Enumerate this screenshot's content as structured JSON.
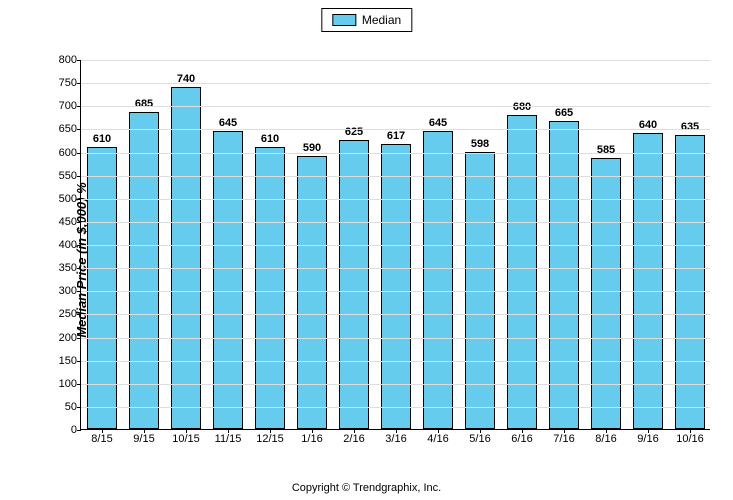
{
  "chart": {
    "type": "bar",
    "legend_label": "Median",
    "y_axis_title": "Median Price (in $,000) %",
    "y_min": 0,
    "y_max": 800,
    "y_tick_step": 50,
    "categories": [
      "8/15",
      "9/15",
      "10/15",
      "11/15",
      "12/15",
      "1/16",
      "2/16",
      "3/16",
      "4/16",
      "5/16",
      "6/16",
      "7/16",
      "8/16",
      "9/16",
      "10/16"
    ],
    "values": [
      610,
      685,
      740,
      645,
      610,
      590,
      625,
      617,
      645,
      598,
      680,
      665,
      585,
      640,
      635
    ],
    "bar_color": "#66ccee",
    "bar_border_color": "#000000",
    "background_color": "#ffffff",
    "grid_color": "#dddddd",
    "bar_width_ratio": 0.72,
    "label_fontsize": 11,
    "axis_fontsize": 11,
    "ytitle_fontsize": 13
  },
  "copyright": "Copyright © Trendgraphix, Inc."
}
